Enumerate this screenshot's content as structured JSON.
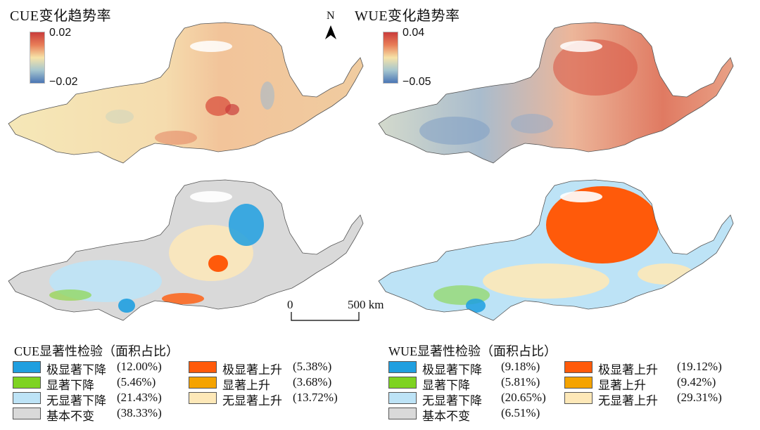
{
  "panels": {
    "cue_trend": {
      "title": "CUE变化趋势率",
      "max_label": "0.02",
      "min_label": "−0.02"
    },
    "wue_trend": {
      "title": "WUE变化趋势率",
      "max_label": "0.04",
      "min_label": "−0.05"
    }
  },
  "north_arrow": {
    "label": "N"
  },
  "scale_bar": {
    "start": "0",
    "end": "500 km"
  },
  "colors": {
    "extreme_decrease": "#1f9fe0",
    "significant_decrease": "#7ed321",
    "insignificant_decrease": "#bde3f6",
    "no_change": "#d9d9d9",
    "extreme_increase": "#ff5a0a",
    "significant_increase": "#f5a300",
    "insignificant_increase": "#fde8b8"
  },
  "legends": {
    "cue": {
      "title": "CUE显著性检验（面积占比）",
      "items": [
        {
          "label": "极显著下降",
          "pct": "(12.00%)",
          "color_key": "extreme_decrease"
        },
        {
          "label": "显著下降",
          "pct": "(5.46%)",
          "color_key": "significant_decrease"
        },
        {
          "label": "无显著下降",
          "pct": "(21.43%)",
          "color_key": "insignificant_decrease"
        },
        {
          "label": "基本不变",
          "pct": "(38.33%)",
          "color_key": "no_change"
        },
        {
          "label": "极显著上升",
          "pct": "(5.38%)",
          "color_key": "extreme_increase"
        },
        {
          "label": "显著上升",
          "pct": "(3.68%)",
          "color_key": "significant_increase"
        },
        {
          "label": "无显著上升",
          "pct": "(13.72%)",
          "color_key": "insignificant_increase"
        }
      ]
    },
    "wue": {
      "title": "WUE显著性检验（面积占比）",
      "items": [
        {
          "label": "极显著下降",
          "pct": "(9.18%)",
          "color_key": "extreme_decrease"
        },
        {
          "label": "显著下降",
          "pct": "(5.81%)",
          "color_key": "significant_decrease"
        },
        {
          "label": "无显著下降",
          "pct": "(20.65%)",
          "color_key": "insignificant_decrease"
        },
        {
          "label": "基本不变",
          "pct": "(6.51%)",
          "color_key": "no_change"
        },
        {
          "label": "极显著上升",
          "pct": "(19.12%)",
          "color_key": "extreme_increase"
        },
        {
          "label": "显著上升",
          "pct": "(9.42%)",
          "color_key": "significant_increase"
        },
        {
          "label": "无显著上升",
          "pct": "(29.31%)",
          "color_key": "insignificant_increase"
        }
      ]
    }
  }
}
